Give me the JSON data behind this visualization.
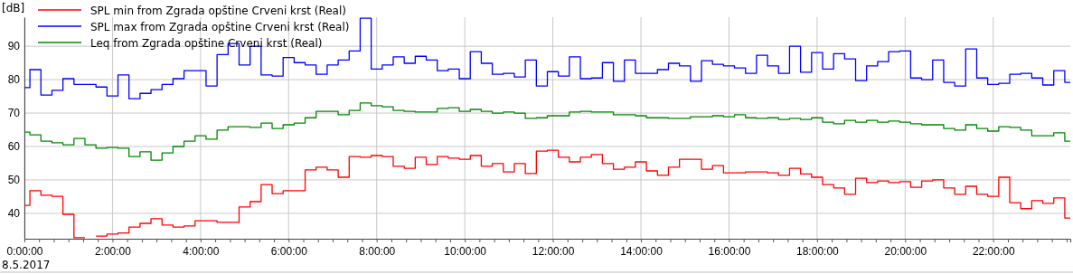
{
  "chart_data": {
    "type": "step",
    "ylabel": "[dB]",
    "annotations": [
      "8.5.2017"
    ],
    "x": [
      0,
      0.125,
      0.375,
      0.625,
      0.875,
      1.125,
      1.375,
      1.625,
      1.875,
      2.125,
      2.375,
      2.625,
      2.875,
      3.125,
      3.375,
      3.625,
      3.875,
      4.125,
      4.375,
      4.625,
      4.875,
      5.125,
      5.375,
      5.625,
      5.875,
      6.125,
      6.375,
      6.625,
      6.875,
      7.125,
      7.375,
      7.625,
      7.875,
      8.125,
      8.375,
      8.625,
      8.875,
      9.125,
      9.375,
      9.625,
      9.875,
      10.125,
      10.375,
      10.625,
      10.875,
      11.125,
      11.375,
      11.625,
      11.875,
      12.125,
      12.375,
      12.625,
      12.875,
      13.125,
      13.375,
      13.625,
      13.875,
      14.125,
      14.375,
      14.625,
      14.875,
      15.125,
      15.375,
      15.625,
      15.875,
      16.125,
      16.375,
      16.625,
      16.875,
      17.125,
      17.375,
      17.625,
      17.875,
      18.125,
      18.375,
      18.625,
      18.875,
      19.125,
      19.375,
      19.625,
      19.875,
      20.125,
      20.375,
      20.625,
      20.875,
      21.125,
      21.375,
      21.625,
      21.875,
      22.125,
      22.375,
      22.625,
      22.875,
      23.125,
      23.375,
      23.625
    ],
    "series": [
      {
        "name": "SPL min from Zgrada opštine Crveni krst (Real)",
        "color": "#ff0000",
        "values": [
          42.4,
          46.8,
          45.4,
          45.1,
          39.7,
          32.7,
          null,
          33.2,
          33.8,
          34.1,
          35.9,
          37.0,
          38.4,
          36.5,
          35.9,
          36.2,
          37.8,
          37.8,
          37.3,
          37.3,
          41.9,
          43.5,
          48.6,
          45.9,
          46.8,
          46.8,
          53.0,
          53.8,
          53.0,
          50.8,
          57.0,
          56.8,
          57.3,
          57.0,
          54.1,
          53.5,
          56.8,
          54.6,
          57.0,
          56.5,
          56.2,
          57.3,
          54.1,
          54.9,
          52.4,
          54.9,
          51.9,
          58.6,
          58.9,
          56.8,
          55.4,
          56.8,
          57.6,
          54.9,
          53.2,
          53.8,
          55.4,
          52.7,
          51.4,
          53.8,
          56.2,
          56.2,
          53.2,
          54.3,
          52.1,
          52.1,
          52.4,
          52.4,
          52.1,
          51.4,
          53.5,
          51.8,
          50.8,
          48.6,
          47.6,
          45.7,
          50.5,
          49.2,
          49.7,
          49.2,
          49.5,
          47.8,
          49.7,
          50.0,
          47.6,
          45.7,
          48.1,
          45.7,
          45.1,
          50.8,
          43.2,
          41.4,
          43.8,
          43.0,
          44.6,
          38.6
        ]
      },
      {
        "name": "SPL max from Zgrada opštine Crveni krst (Real)",
        "color": "#0000ff",
        "values": [
          77.6,
          83.0,
          75.4,
          76.8,
          80.3,
          78.6,
          78.6,
          77.8,
          75.1,
          81.4,
          74.3,
          75.9,
          77.0,
          78.6,
          80.3,
          82.7,
          82.7,
          78.1,
          87.5,
          90.8,
          84.4,
          90.0,
          81.4,
          81.1,
          86.6,
          85.1,
          84.4,
          81.6,
          84.4,
          85.9,
          88.6,
          98.4,
          83.2,
          84.4,
          86.8,
          84.9,
          87.0,
          85.9,
          82.7,
          83.2,
          80.3,
          88.4,
          84.9,
          81.6,
          81.9,
          80.8,
          85.9,
          78.1,
          82.4,
          81.1,
          86.8,
          80.3,
          80.5,
          85.1,
          79.5,
          85.9,
          81.9,
          81.9,
          83.0,
          84.9,
          84.1,
          79.5,
          85.7,
          84.6,
          84.1,
          83.5,
          81.9,
          87.3,
          84.1,
          81.9,
          90.0,
          82.2,
          88.1,
          83.2,
          87.8,
          86.2,
          79.7,
          84.1,
          85.4,
          88.4,
          88.6,
          80.5,
          80.0,
          85.9,
          79.2,
          78.1,
          89.2,
          80.5,
          78.6,
          78.9,
          81.6,
          81.9,
          80.5,
          78.4,
          82.7,
          79.2
        ]
      },
      {
        "name": "Leq from Zgrada opštine Crveni krst (Real)",
        "color": "#008800",
        "values": [
          64.3,
          63.5,
          61.6,
          61.1,
          60.5,
          62.4,
          60.5,
          59.5,
          59.7,
          59.5,
          57.0,
          58.4,
          55.9,
          58.1,
          60.0,
          61.6,
          63.2,
          62.2,
          64.9,
          65.9,
          65.9,
          65.7,
          67.0,
          65.4,
          66.5,
          67.0,
          68.6,
          70.5,
          70.5,
          69.5,
          70.8,
          73.0,
          72.2,
          71.9,
          70.8,
          70.5,
          70.3,
          70.3,
          71.4,
          71.6,
          70.5,
          71.1,
          70.5,
          70.0,
          70.3,
          70.0,
          68.4,
          68.6,
          69.2,
          69.2,
          70.3,
          70.5,
          70.3,
          70.3,
          69.5,
          69.5,
          69.2,
          68.6,
          68.6,
          68.4,
          68.4,
          68.9,
          68.9,
          69.2,
          68.9,
          69.5,
          68.6,
          68.4,
          68.6,
          68.1,
          68.4,
          68.1,
          68.6,
          67.3,
          66.8,
          67.8,
          67.3,
          67.8,
          67.3,
          67.6,
          67.3,
          66.8,
          66.5,
          66.5,
          65.4,
          64.9,
          66.5,
          65.4,
          64.6,
          65.9,
          65.7,
          64.9,
          63.2,
          63.2,
          64.1,
          61.6
        ]
      }
    ],
    "xlim": [
      0,
      23.75
    ],
    "ylim": [
      32.4,
      98.7
    ],
    "yticks": [
      40,
      50,
      60,
      70,
      80,
      90
    ],
    "xticks": [
      {
        "value": 0,
        "label": "0:00:00"
      },
      {
        "value": 0.333,
        "label": null
      },
      {
        "value": 0.667,
        "label": null
      },
      {
        "value": 1,
        "label": null
      },
      {
        "value": 1.333,
        "label": null
      },
      {
        "value": 1.667,
        "label": null
      },
      {
        "value": 2,
        "label": "2:00:00"
      },
      {
        "value": 2.333,
        "label": null
      },
      {
        "value": 2.667,
        "label": null
      },
      {
        "value": 3,
        "label": null
      },
      {
        "value": 3.333,
        "label": null
      },
      {
        "value": 3.667,
        "label": null
      },
      {
        "value": 4,
        "label": "4:00:00"
      },
      {
        "value": 4.333,
        "label": null
      },
      {
        "value": 4.667,
        "label": null
      },
      {
        "value": 5,
        "label": null
      },
      {
        "value": 5.333,
        "label": null
      },
      {
        "value": 5.667,
        "label": null
      },
      {
        "value": 6,
        "label": "6:00:00"
      },
      {
        "value": 6.333,
        "label": null
      },
      {
        "value": 6.667,
        "label": null
      },
      {
        "value": 7,
        "label": null
      },
      {
        "value": 7.333,
        "label": null
      },
      {
        "value": 7.667,
        "label": null
      },
      {
        "value": 8,
        "label": "8:00:00"
      },
      {
        "value": 8.333,
        "label": null
      },
      {
        "value": 8.667,
        "label": null
      },
      {
        "value": 9,
        "label": null
      },
      {
        "value": 9.333,
        "label": null
      },
      {
        "value": 9.667,
        "label": null
      },
      {
        "value": 10,
        "label": "10:00:00"
      },
      {
        "value": 10.333,
        "label": null
      },
      {
        "value": 10.667,
        "label": null
      },
      {
        "value": 11,
        "label": null
      },
      {
        "value": 11.333,
        "label": null
      },
      {
        "value": 11.667,
        "label": null
      },
      {
        "value": 12,
        "label": "12:00:00"
      },
      {
        "value": 12.333,
        "label": null
      },
      {
        "value": 12.667,
        "label": null
      },
      {
        "value": 13,
        "label": null
      },
      {
        "value": 13.333,
        "label": null
      },
      {
        "value": 13.667,
        "label": null
      },
      {
        "value": 14,
        "label": "14:00:00"
      },
      {
        "value": 14.333,
        "label": null
      },
      {
        "value": 14.667,
        "label": null
      },
      {
        "value": 15,
        "label": null
      },
      {
        "value": 15.333,
        "label": null
      },
      {
        "value": 15.667,
        "label": null
      },
      {
        "value": 16,
        "label": "16:00:00"
      },
      {
        "value": 16.333,
        "label": null
      },
      {
        "value": 16.667,
        "label": null
      },
      {
        "value": 17,
        "label": null
      },
      {
        "value": 17.333,
        "label": null
      },
      {
        "value": 17.667,
        "label": null
      },
      {
        "value": 18,
        "label": "18:00:00"
      },
      {
        "value": 18.333,
        "label": null
      },
      {
        "value": 18.667,
        "label": null
      },
      {
        "value": 19,
        "label": null
      },
      {
        "value": 19.333,
        "label": null
      },
      {
        "value": 19.667,
        "label": null
      },
      {
        "value": 20,
        "label": "20:00:00"
      },
      {
        "value": 20.333,
        "label": null
      },
      {
        "value": 20.667,
        "label": null
      },
      {
        "value": 21,
        "label": null
      },
      {
        "value": 21.333,
        "label": null
      },
      {
        "value": 21.667,
        "label": null
      },
      {
        "value": 22,
        "label": "22:00:00"
      },
      {
        "value": 22.333,
        "label": null
      },
      {
        "value": 22.667,
        "label": null
      },
      {
        "value": 23,
        "label": null
      },
      {
        "value": 23.333,
        "label": null
      },
      {
        "value": 23.667,
        "label": null
      }
    ],
    "grid": true,
    "legend": "top left"
  }
}
